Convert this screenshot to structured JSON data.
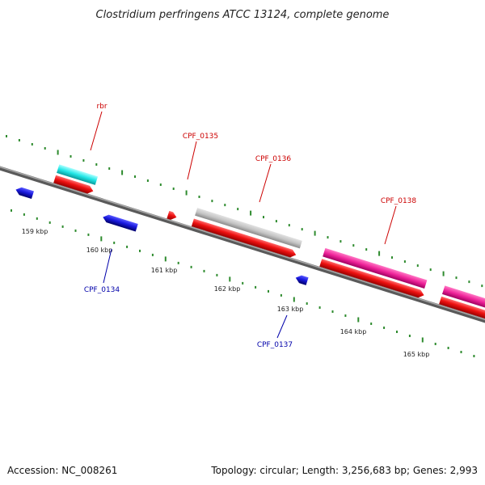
{
  "title": "Clostridium perfringens ATCC 13124, complete genome",
  "footer": {
    "accession": "Accession: NC_008261",
    "summary": "Topology: circular; Length: 3,256,683 bp; Genes: 2,993"
  },
  "colors": {
    "backbone": "#7f7f7f",
    "tick": "#2e8b2e",
    "cds_red": "#ee1111",
    "cds_blue": "#1a1adf",
    "gray_feature": "#c4c4c4",
    "cyan_feature": "#22e6e6",
    "magenta_feature": "#ee2299",
    "label_red": "#cc0000",
    "label_blue": "#0000aa"
  },
  "kbp_ticks": [
    {
      "kb": 159,
      "label": "159 kbp"
    },
    {
      "kb": 160,
      "label": "160 kbp"
    },
    {
      "kb": 161,
      "label": "161 kbp"
    },
    {
      "kb": 162,
      "label": "162 kbp"
    },
    {
      "kb": 163,
      "label": "163 kbp"
    },
    {
      "kb": 164,
      "label": "164 kbp"
    },
    {
      "kb": 165,
      "label": "165 kbp"
    }
  ],
  "gene_labels": [
    {
      "id": "rbr",
      "text": "rbr",
      "strand": "forward"
    },
    {
      "id": "cpf0134",
      "text": "CPF_0134",
      "strand": "reverse"
    },
    {
      "id": "cpf0135",
      "text": "CPF_0135",
      "strand": "forward"
    },
    {
      "id": "cpf0136",
      "text": "CPF_0136",
      "strand": "forward"
    },
    {
      "id": "cpf0137",
      "text": "CPF_0137",
      "strand": "reverse"
    },
    {
      "id": "cpf0138",
      "text": "CPF_0138",
      "strand": "forward"
    }
  ]
}
